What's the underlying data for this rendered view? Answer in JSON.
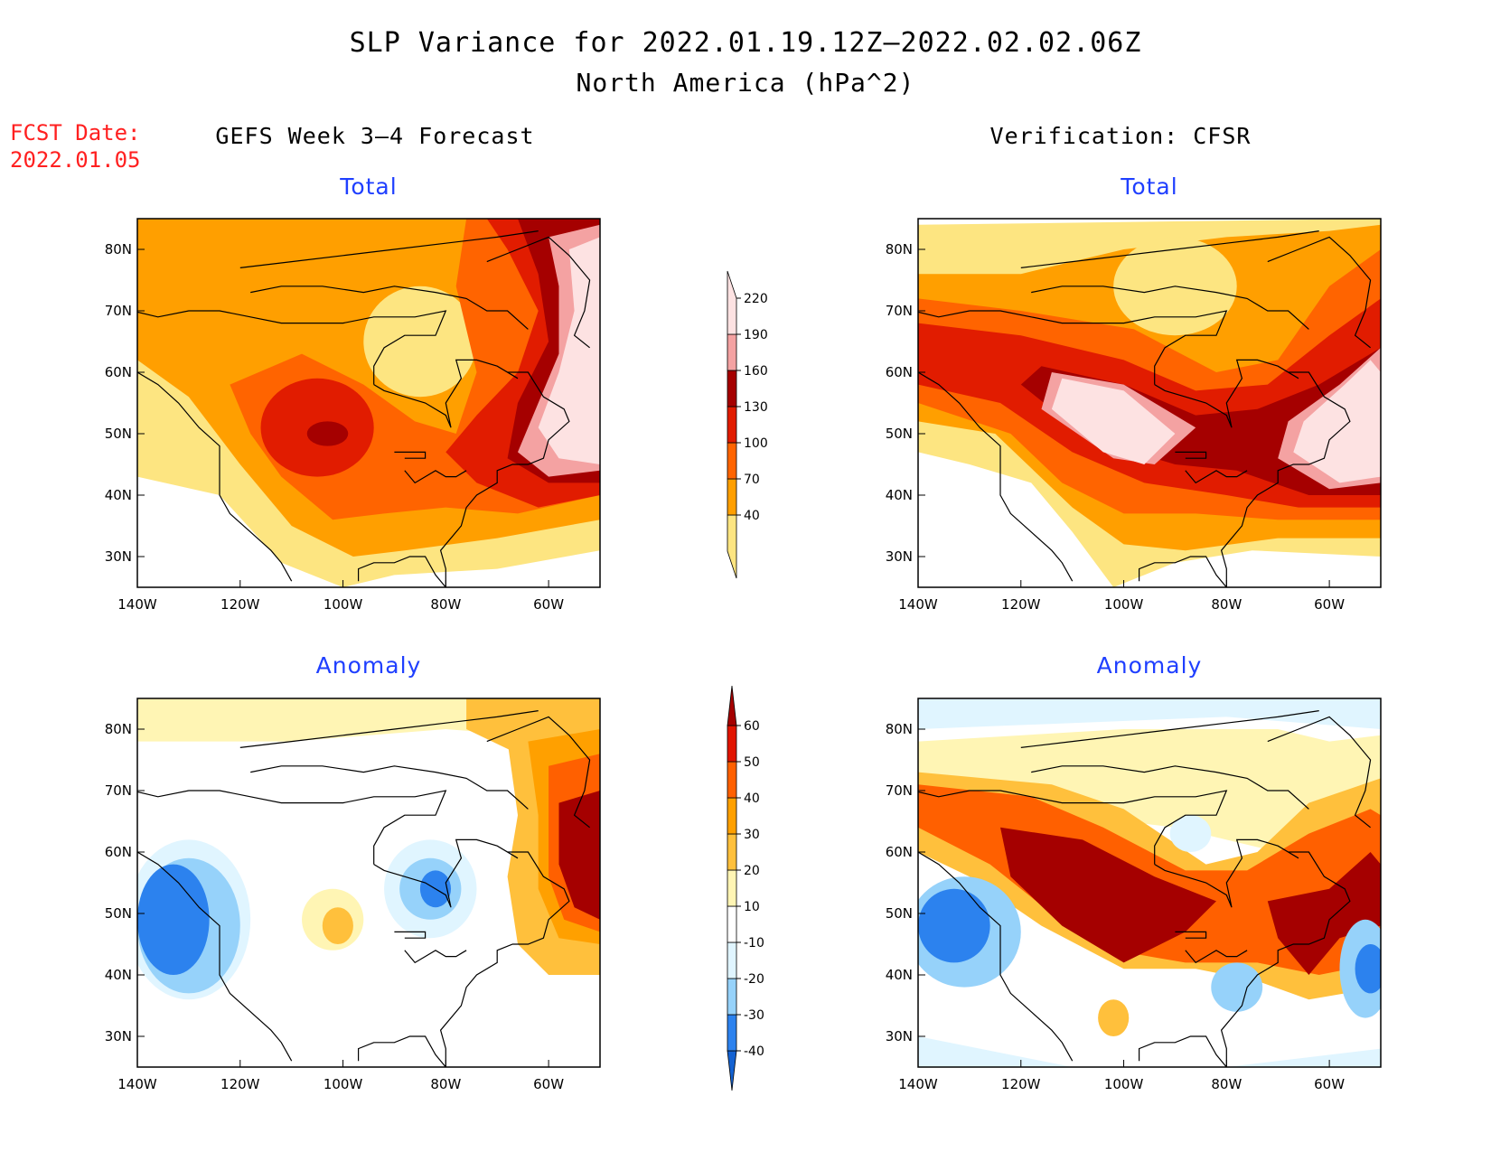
{
  "title": "SLP Variance for 2022.01.19.12Z–2022.02.02.06Z",
  "subtitle": "North America (hPa^2)",
  "forecast_date": {
    "label": "FCST Date:",
    "value": "2022.01.05"
  },
  "columns": [
    {
      "title": "GEFS Week 3–4 Forecast"
    },
    {
      "title": "Verification: CFSR"
    }
  ],
  "panels": [
    {
      "title": "Total"
    },
    {
      "title": "Total"
    },
    {
      "title": "Anomaly"
    },
    {
      "title": "Anomaly"
    }
  ],
  "map_axes": {
    "lon_ticks": [
      "140W",
      "120W",
      "100W",
      "80W",
      "60W"
    ],
    "lat_ticks": [
      "80N",
      "70N",
      "60N",
      "50N",
      "40N",
      "30N"
    ],
    "lon_range": [
      -140,
      -50
    ],
    "lat_range": [
      25,
      85
    ]
  },
  "colorbars": {
    "total": {
      "levels": [
        "40",
        "70",
        "100",
        "130",
        "160",
        "190",
        "220"
      ],
      "colors": [
        "#fde581",
        "#ff9f00",
        "#ff6400",
        "#e11c00",
        "#a50000",
        "#f4a2a2",
        "#fde2e2"
      ]
    },
    "anomaly": {
      "levels": [
        "-40",
        "-30",
        "-20",
        "-10",
        "10",
        "20",
        "30",
        "40",
        "50",
        "60"
      ],
      "colors": [
        "#1462d2",
        "#2c82ee",
        "#96d2fa",
        "#e0f5ff",
        "#ffffff",
        "#fff5b4",
        "#ffc03c",
        "#ffa000",
        "#ff6000",
        "#e11400",
        "#a50000"
      ]
    }
  }
}
